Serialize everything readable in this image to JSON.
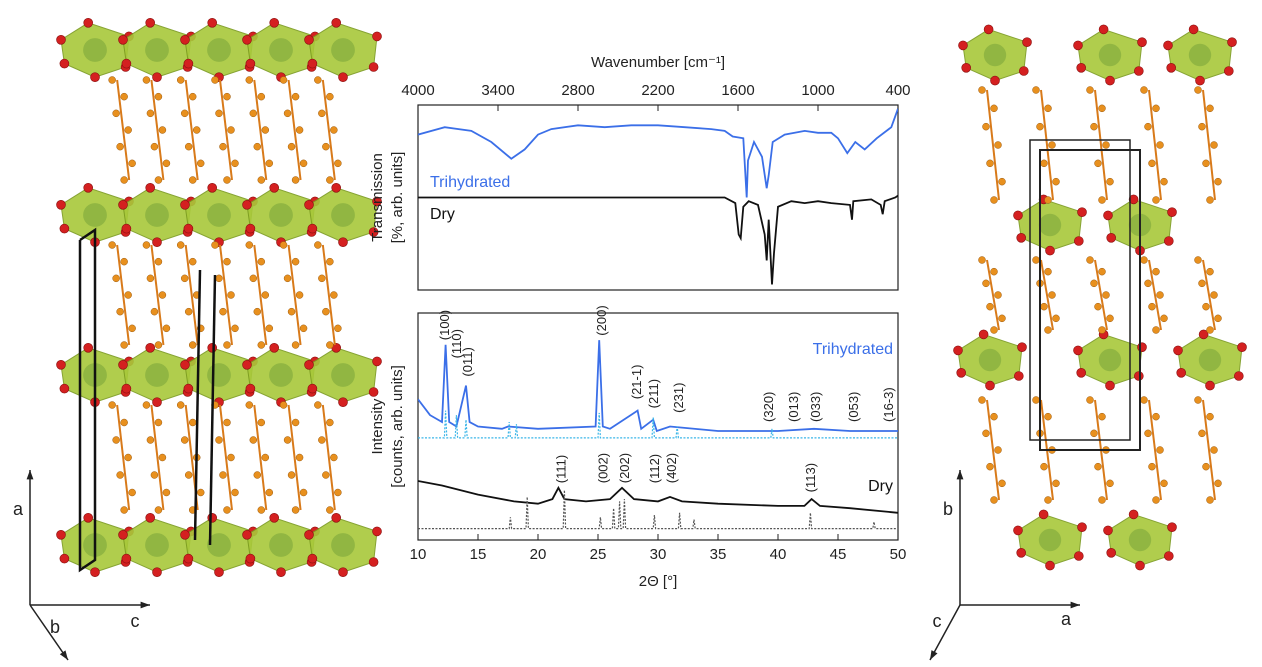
{
  "chart_data": [
    {
      "type": "line",
      "x_label": "Wavenumber [cm⁻¹]",
      "y_label": [
        "Transmission",
        "[%, arb. units]"
      ],
      "xlim": [
        4000,
        400
      ],
      "xticks": [
        4000,
        3400,
        2800,
        2200,
        1600,
        1000,
        400
      ],
      "ylim": [
        0,
        100
      ],
      "x_axis": "top",
      "series": [
        {
          "name": "Trihydrated",
          "color": "#3b6fe8",
          "x": [
            4000,
            3800,
            3600,
            3450,
            3300,
            3200,
            3100,
            3000,
            2800,
            2600,
            2400,
            2200,
            2000,
            1800,
            1700,
            1640,
            1560,
            1535,
            1525,
            1480,
            1420,
            1385,
            1370,
            1340,
            1250,
            1100,
            1000,
            900,
            850,
            780,
            720,
            650,
            560,
            450,
            400
          ],
          "values": [
            84,
            88,
            86,
            80,
            71,
            76,
            84,
            87,
            89,
            88,
            89,
            89,
            88,
            87,
            86,
            83,
            82,
            50,
            70,
            80,
            72,
            55,
            62,
            80,
            84,
            86,
            85,
            85,
            82,
            74,
            80,
            76,
            82,
            88,
            98
          ]
        },
        {
          "name": "Dry",
          "color": "#111111",
          "x": [
            4000,
            3000,
            2000,
            1700,
            1620,
            1595,
            1580,
            1560,
            1520,
            1450,
            1400,
            1385,
            1370,
            1345,
            1330,
            1300,
            1200,
            1100,
            1000,
            900,
            760,
            745,
            735,
            600,
            530,
            515,
            500,
            420,
            400
          ],
          "values": [
            50,
            50,
            50,
            50,
            47,
            30,
            28,
            45,
            48,
            46,
            30,
            16,
            38,
            3,
            20,
            45,
            48,
            47,
            48,
            47,
            46,
            38,
            48,
            49,
            46,
            41,
            48,
            50,
            51
          ]
        }
      ]
    },
    {
      "type": "line",
      "x_label": "2Θ [°]",
      "y_label": [
        "Intensity",
        "[counts, arb. units]"
      ],
      "xlim": [
        10,
        50
      ],
      "xticks": [
        10,
        15,
        20,
        25,
        30,
        35,
        40,
        45,
        50
      ],
      "ylim": [
        0,
        100
      ],
      "x_axis": "bottom",
      "series": [
        {
          "name": "Trihydrated",
          "color": "#3b6fe8",
          "x": [
            10,
            11,
            12,
            12.3,
            12.6,
            13.2,
            14.0,
            14.3,
            15,
            17,
            17.5,
            20,
            24.8,
            25.1,
            25.4,
            26,
            28.3,
            28.6,
            29.6,
            29.9,
            31,
            35,
            40,
            43,
            46,
            50
          ],
          "values": [
            62,
            55,
            52,
            86,
            52,
            50,
            68,
            52,
            50,
            49,
            50,
            49,
            50,
            88,
            50,
            49,
            57,
            49,
            53,
            48,
            50,
            48,
            48,
            49,
            48,
            48
          ]
        },
        {
          "color": "#39b5e8",
          "style": "dotted",
          "x": [
            10,
            12.2,
            12.3,
            12.4,
            13.1,
            13.2,
            13.3,
            13.9,
            14.0,
            14.1,
            17.5,
            17.6,
            17.7,
            18.1,
            18.2,
            18.3,
            25.0,
            25.1,
            25.2,
            29.5,
            29.6,
            29.7,
            31.5,
            31.6,
            31.7,
            39.4,
            39.5,
            39.6,
            50
          ],
          "values": [
            45,
            45,
            57,
            45,
            45,
            55,
            45,
            45,
            53,
            45,
            45,
            52,
            45,
            45,
            51,
            45,
            45,
            56,
            45,
            45,
            54,
            45,
            45,
            50,
            45,
            45,
            49,
            45,
            45
          ]
        },
        {
          "name": "Dry",
          "color": "#111111",
          "x": [
            10,
            12,
            15,
            18,
            20,
            21.2,
            21.7,
            22.2,
            24,
            26,
            27,
            28,
            30,
            31,
            32,
            35,
            40,
            42.2,
            42.8,
            43.5,
            46,
            50
          ],
          "values": [
            26,
            24,
            20,
            17,
            16,
            18,
            23,
            18,
            17,
            18,
            23,
            18,
            17,
            19,
            17,
            16,
            15,
            15,
            18,
            15,
            14,
            12
          ]
        },
        {
          "color": "#555555",
          "style": "dotted",
          "x": [
            10,
            17.6,
            17.7,
            17.8,
            19.0,
            19.1,
            19.2,
            22.1,
            22.2,
            22.3,
            25.1,
            25.2,
            25.3,
            26.2,
            26.3,
            26.4,
            26.7,
            26.8,
            26.9,
            27.1,
            27.2,
            27.3,
            29.6,
            29.7,
            29.8,
            31.7,
            31.8,
            31.9,
            32.9,
            33.0,
            33.1,
            42.6,
            42.7,
            42.8,
            47.9,
            48.0,
            48.1,
            50
          ],
          "values": [
            5,
            5,
            10,
            5,
            5,
            19,
            5,
            5,
            22,
            5,
            5,
            10,
            5,
            5,
            14,
            5,
            5,
            17,
            5,
            5,
            18,
            5,
            5,
            11,
            5,
            5,
            12,
            5,
            5,
            9,
            5,
            5,
            12,
            5,
            5,
            8,
            5,
            5
          ]
        }
      ],
      "annotations": [
        {
          "text": "(100)",
          "x": 12.3,
          "y": 88
        },
        {
          "text": "(110)",
          "x": 13.3,
          "y": 80
        },
        {
          "text": "(011)",
          "x": 14.2,
          "y": 72
        },
        {
          "text": "(200)",
          "x": 25.4,
          "y": 90
        },
        {
          "text": "(21-1)",
          "x": 28.3,
          "y": 62
        },
        {
          "text": "(211)",
          "x": 29.7,
          "y": 58
        },
        {
          "text": "(231)",
          "x": 31.8,
          "y": 56
        },
        {
          "text": "(320)",
          "x": 39.3,
          "y": 52
        },
        {
          "text": "(013)",
          "x": 41.4,
          "y": 52
        },
        {
          "text": "(033)",
          "x": 43.2,
          "y": 52
        },
        {
          "text": "(053)",
          "x": 46.4,
          "y": 52
        },
        {
          "text": "(16-3)",
          "x": 49.3,
          "y": 52
        },
        {
          "text": "(111)",
          "x": 22.0,
          "y": 25
        },
        {
          "text": "(002)",
          "x": 25.5,
          "y": 25
        },
        {
          "text": "(202)",
          "x": 27.3,
          "y": 25
        },
        {
          "text": "(112)",
          "x": 29.8,
          "y": 25
        },
        {
          "text": "(402)",
          "x": 31.2,
          "y": 25
        },
        {
          "text": "(113)",
          "x": 42.8,
          "y": 21
        }
      ]
    }
  ],
  "structures": {
    "left_axes": [
      "a",
      "b",
      "c"
    ],
    "right_axes": [
      "b",
      "c",
      "a"
    ]
  }
}
